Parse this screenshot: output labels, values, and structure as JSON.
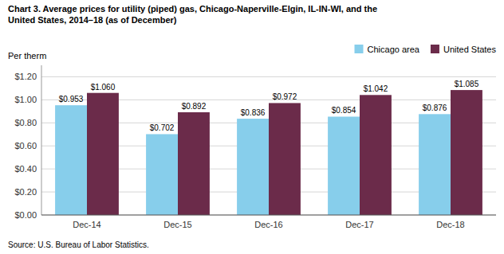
{
  "chart_data": {
    "type": "bar",
    "title": "Chart 3. Average prices for utility (piped) gas, Chicago-Naperville-Elgin, IL-IN-WI, and the\nUnited States, 2014–18 (as of December)",
    "ylabel": "Per therm",
    "categories": [
      "Dec-14",
      "Dec-15",
      "Dec-16",
      "Dec-17",
      "Dec-18"
    ],
    "series": [
      {
        "name": "Chicago area",
        "color": "#87CEEB",
        "values": [
          0.953,
          0.702,
          0.836,
          0.854,
          0.876
        ],
        "value_labels": [
          "$0.953",
          "$0.702",
          "$0.836",
          "$0.854",
          "$0.876"
        ]
      },
      {
        "name": "United States",
        "color": "#6B2B4A",
        "values": [
          1.06,
          0.892,
          0.972,
          1.042,
          1.085
        ],
        "value_labels": [
          "$1.060",
          "$0.892",
          "$0.972",
          "$1.042",
          "$1.085"
        ]
      }
    ],
    "ylim": [
      0.0,
      1.3
    ],
    "yticks": [
      {
        "value": 0.0,
        "label": "$0.00"
      },
      {
        "value": 0.2,
        "label": "$0.20"
      },
      {
        "value": 0.4,
        "label": "$0.40"
      },
      {
        "value": 0.6,
        "label": "$0.60"
      },
      {
        "value": 0.8,
        "label": "$0.80"
      },
      {
        "value": 1.0,
        "label": "$1.00"
      },
      {
        "value": 1.2,
        "label": "$1.20"
      }
    ],
    "grid": true,
    "legend": "upper right",
    "data_labels": true,
    "annotations": [
      "Source: U.S. Bureau of Labor Statistics."
    ]
  }
}
